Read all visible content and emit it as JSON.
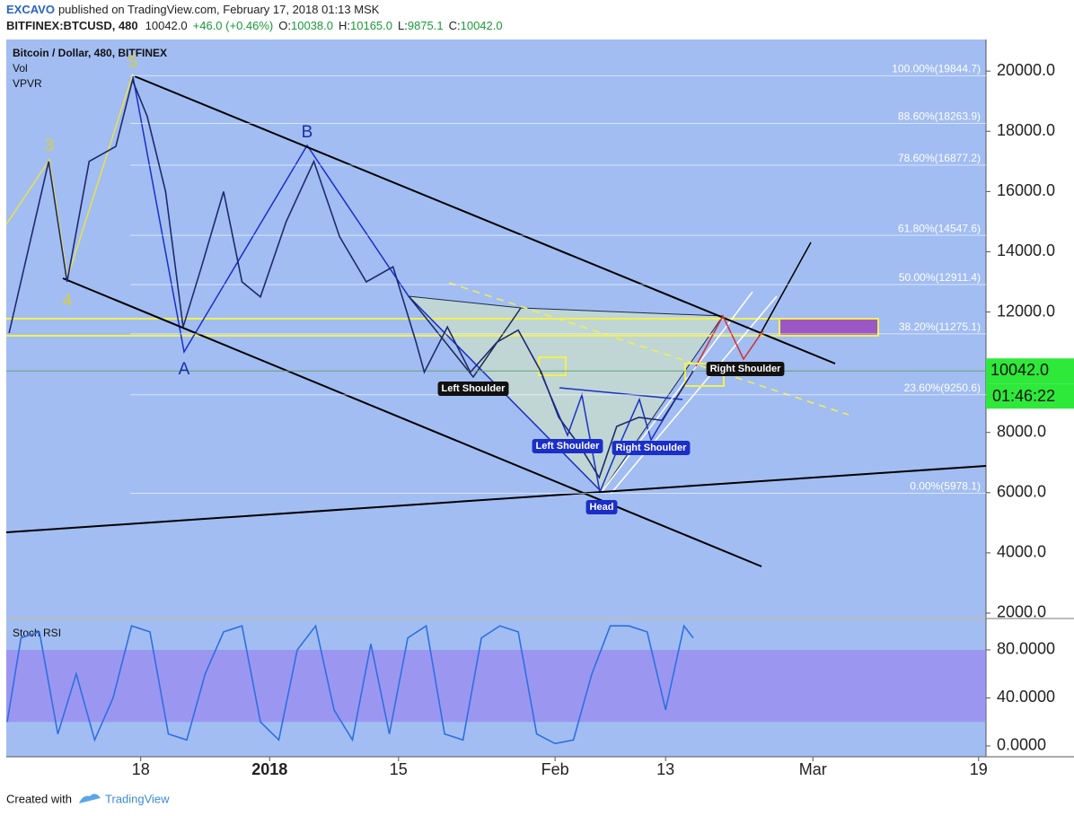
{
  "header": {
    "author": "EXCAVO",
    "published": "published on TradingView.com, February 17, 2018 01:13 MSK",
    "symbol": "BITFINEX:BTCUSD, 480",
    "last": "10042.0",
    "change": "+46.0 (+0.46%)",
    "ohlc": [
      {
        "label": "O:",
        "value": "10038.0"
      },
      {
        "label": "H:",
        "value": "10165.0"
      },
      {
        "label": "L:",
        "value": "9875.1"
      },
      {
        "label": "C:",
        "value": "10042.0"
      }
    ]
  },
  "chart_data": [
    {
      "type": "line",
      "title": "Bitcoin / Dollar, 480, BITFINEX",
      "indicators": [
        "Vol",
        "VPVR"
      ],
      "color": "#1e2a6e",
      "x": [
        2.7,
        7,
        9,
        11.4,
        14.3,
        16.1,
        17.7,
        19.7,
        21.6,
        23.6,
        26,
        28,
        30,
        32.8,
        35.8,
        38.6,
        41.5,
        44.4,
        46.9,
        47.8,
        50.3,
        52.8,
        55.7,
        58,
        60.5,
        62.4,
        64.8,
        66.8,
        68.7,
        71.1,
        73.6,
        75.5,
        77
      ],
      "values": [
        11300,
        17000,
        13000,
        17000,
        17500,
        19700,
        18500,
        16000,
        11500,
        13500,
        16000,
        13000,
        12500,
        15000,
        17000,
        14500,
        13000,
        13500,
        11000,
        10000,
        11500,
        10000,
        11000,
        11400,
        10000,
        8500,
        7500,
        6500,
        8200,
        8500,
        8400,
        9300,
        10042
      ],
      "xlim": [
        2.4,
        108.8
      ],
      "ylim": [
        1850,
        21050
      ],
      "xticks": [
        {
          "value": 17,
          "label": "18"
        },
        {
          "value": 31,
          "label": "2018"
        },
        {
          "value": 45,
          "label": "15"
        },
        {
          "value": 62,
          "label": "Feb"
        },
        {
          "value": 74,
          "label": "13"
        },
        {
          "value": 90,
          "label": "Mar"
        },
        {
          "value": 108,
          "label": "19"
        }
      ],
      "yticks": [
        {
          "value": 2000,
          "label": "2000.0"
        },
        {
          "value": 4000,
          "label": "4000.0"
        },
        {
          "value": 6000,
          "label": "6000.0"
        },
        {
          "value": 8000,
          "label": "8000.0"
        },
        {
          "value": 10000,
          "label": "10000.0"
        },
        {
          "value": 12000,
          "label": "12000.0"
        },
        {
          "value": 14000,
          "label": "14000.0"
        },
        {
          "value": 16000,
          "label": "16000.0"
        },
        {
          "value": 18000,
          "label": "18000.0"
        },
        {
          "value": 20000,
          "label": "20000.0"
        }
      ],
      "fib_levels": [
        {
          "value": 19844.7,
          "label": "100.00%(19844.7)"
        },
        {
          "value": 18263.9,
          "label": "88.60%(18263.9)"
        },
        {
          "value": 16877.2,
          "label": "78.60%(16877.2)"
        },
        {
          "value": 14547.6,
          "label": "61.80%(14547.6)"
        },
        {
          "value": 12911.4,
          "label": "50.00%(12911.4)"
        },
        {
          "value": 11275.1,
          "label": "38.20%(11275.1)"
        },
        {
          "value": 9250.6,
          "label": "23.60%(9250.6)"
        },
        {
          "value": 5978.1,
          "label": "0.00%(5978.1)"
        }
      ],
      "price_label": {
        "value": 10042,
        "label": "10042.0"
      },
      "countdown": "01:46:22",
      "annotations": [
        "3",
        "4",
        "5",
        "A",
        "B",
        "Left Shoulder",
        "Right Shoulder",
        "Left Shoulder",
        "Head",
        "Right Shoulder"
      ]
    },
    {
      "type": "line",
      "title": "Stoch RSI",
      "color": "#2f6fe0",
      "x": [
        2.5,
        4,
        6,
        8,
        10,
        12,
        14,
        16,
        18,
        20,
        22,
        24,
        26,
        28,
        30,
        32,
        34,
        36,
        38,
        40,
        42,
        44,
        46,
        48,
        50,
        52,
        54,
        56,
        58,
        60,
        62,
        64,
        66,
        68,
        70,
        72,
        74,
        76,
        77
      ],
      "values": [
        20,
        90,
        95,
        10,
        60,
        5,
        40,
        100,
        95,
        10,
        5,
        60,
        95,
        100,
        20,
        5,
        80,
        100,
        30,
        5,
        85,
        10,
        90,
        100,
        10,
        5,
        90,
        100,
        95,
        10,
        2,
        5,
        60,
        100,
        100,
        95,
        30,
        100,
        90
      ],
      "xlim": [
        2.4,
        108.8
      ],
      "ylim": [
        -9,
        105.4
      ],
      "band": [
        20,
        80
      ],
      "yticks": [
        {
          "value": 0,
          "label": "0.0000"
        },
        {
          "value": 40,
          "label": "40.0000"
        },
        {
          "value": 80,
          "label": "80.0000"
        }
      ]
    }
  ],
  "footer": {
    "created_with": "Created with",
    "brand": "TradingView"
  }
}
